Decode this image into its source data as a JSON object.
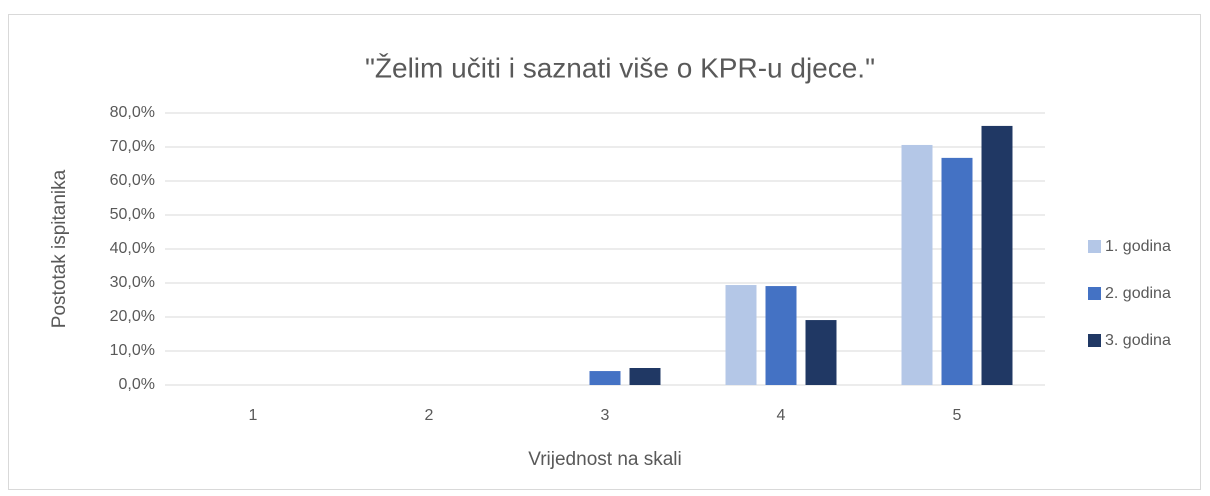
{
  "chart_data": {
    "type": "bar",
    "title": "\"Želim učiti i saznati više o KPR-u djece.\"",
    "x_label": "Vrijednost na skali",
    "y_label": "Postotak ispitanika",
    "categories": [
      "1",
      "2",
      "3",
      "4",
      "5"
    ],
    "series": [
      {
        "name": "1. godina",
        "color": "#b4c7e7",
        "values": [
          0,
          0,
          0,
          29.4,
          70.6
        ]
      },
      {
        "name": "2. godina",
        "color": "#4472c4",
        "values": [
          0,
          0,
          4.1,
          29.1,
          66.8
        ]
      },
      {
        "name": "3. godina",
        "color": "#203864",
        "values": [
          0,
          0,
          5.0,
          19.1,
          76.2
        ]
      }
    ],
    "ylim": [
      0,
      80
    ],
    "yticks": [
      {
        "value": 0,
        "label": "0,0%"
      },
      {
        "value": 10,
        "label": "10,0%"
      },
      {
        "value": 20,
        "label": "20,0%"
      },
      {
        "value": 30,
        "label": "30,0%"
      },
      {
        "value": 40,
        "label": "40,0%"
      },
      {
        "value": 50,
        "label": "50,0%"
      },
      {
        "value": 60,
        "label": "60,0%"
      },
      {
        "value": 70,
        "label": "70,0%"
      },
      {
        "value": 80,
        "label": "80,0%"
      }
    ],
    "grid": true,
    "legend": "right"
  }
}
